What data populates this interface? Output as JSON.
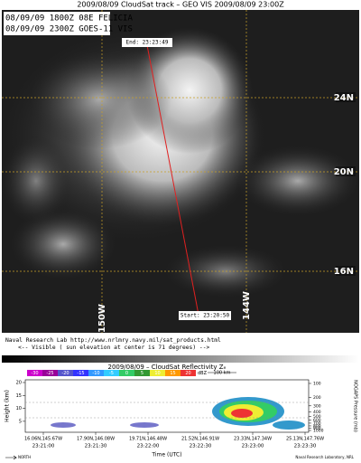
{
  "header": {
    "title": "2009/08/09 CloudSat track – GEO VIS  2009/08/09 23:00Z"
  },
  "image": {
    "info": [
      "08/09/09 1800Z  08E FELICIA",
      "08/09/09 2300Z  GOES-11 VIS"
    ],
    "lat_labels": [
      "24N",
      "20N",
      "16N"
    ],
    "lon_labels": [
      "150W",
      "144W"
    ],
    "end_label": "End: 23:23:49",
    "start_label": "Start: 23:20:50"
  },
  "footer": {
    "credit": "Naval Research Lab http://www.nrlmry.navy.mil/sat_products.html",
    "note": "<--  Visible ( sun elevation at center is 71 degrees)  -->"
  },
  "profile": {
    "title": "2009/08/09 – CloudSat Reflectivity Zₑ",
    "colorbar_labels": [
      "-30",
      "-25",
      "-20",
      "-15",
      "-10",
      "-5",
      "0",
      "5",
      "10",
      "15",
      "20"
    ],
    "colorbar_unit": "dBZ",
    "scale": "100 km",
    "y_label": "Height (km)",
    "y_ticks": [
      "20",
      "15",
      "10",
      "5"
    ],
    "y2_label": "NOGAPS Pressure (mb)",
    "y2_ticks": [
      "100",
      "200",
      "300",
      "400",
      "500",
      "600",
      "700",
      "800",
      "900",
      "1000"
    ],
    "positions": [
      "16.06N,145.67W",
      "17.90N,146.08W",
      "19.71N,146.48W",
      "21.52N,146.91W",
      "23.33N,147.34W",
      "25.13N,147.76W"
    ],
    "times": [
      "23:21:00",
      "23:21:30",
      "23:22:00",
      "23:22:30",
      "23:23:00",
      "23:23:30"
    ],
    "x_label": "Time (UTC)",
    "north": "NORTH",
    "credit": "Naval Research Laboratory, NRL"
  }
}
